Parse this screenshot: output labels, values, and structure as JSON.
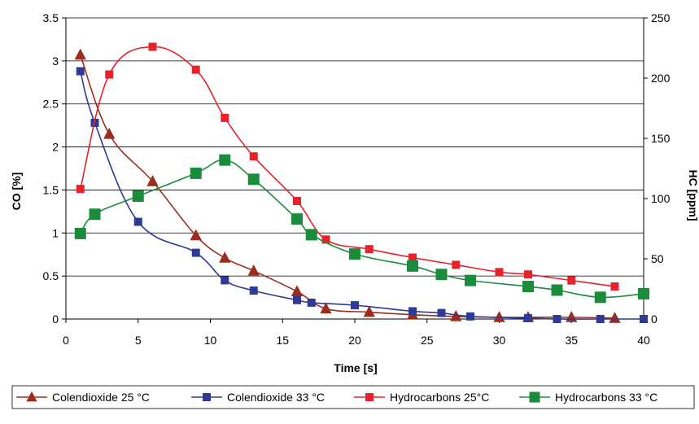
{
  "chart_data": {
    "type": "line",
    "xlabel": "Time [s]",
    "ylabel": "CO [%]",
    "y2label": "HC [ppm]",
    "xlim": [
      0,
      40
    ],
    "ylim": [
      0,
      3.5
    ],
    "y2lim": [
      0,
      250
    ],
    "x_ticks": [
      "0",
      "5",
      "10",
      "15",
      "20",
      "25",
      "30",
      "35",
      "40"
    ],
    "y_ticks": [
      "0",
      "0.5",
      "1",
      "1.5",
      "2",
      "2.5",
      "3",
      "3.5"
    ],
    "y2_ticks": [
      "0",
      "50",
      "100",
      "150",
      "200",
      "250"
    ],
    "grid": "horizontal",
    "legend_position": "bottom",
    "series": [
      {
        "name": "Colendioxide 25 °C",
        "axis": "left",
        "color": "#9b2d1e",
        "marker": "triangle",
        "x": [
          1,
          3,
          6,
          9,
          11,
          13,
          16,
          18,
          21,
          24,
          27,
          30,
          32,
          35,
          38
        ],
        "y": [
          3.07,
          2.15,
          1.6,
          0.97,
          0.71,
          0.56,
          0.32,
          0.12,
          0.08,
          0.05,
          0.03,
          0.02,
          0.02,
          0.02,
          0.01
        ]
      },
      {
        "name": "Colendioxide 33 °C",
        "axis": "left",
        "color": "#2e3a94",
        "marker": "square",
        "x": [
          1,
          2,
          5,
          9,
          11,
          13,
          16,
          17,
          20,
          24,
          26,
          28,
          32,
          34,
          37,
          40
        ],
        "y": [
          2.88,
          2.28,
          1.13,
          0.77,
          0.45,
          0.33,
          0.22,
          0.19,
          0.16,
          0.09,
          0.07,
          0.03,
          0.01,
          0.0,
          0.0,
          0.0
        ]
      },
      {
        "name": "Hydrocarbons 25°C",
        "axis": "right",
        "color": "#e8222b",
        "marker": "square",
        "x": [
          1,
          3,
          6,
          9,
          11,
          13,
          16,
          18,
          21,
          24,
          27,
          30,
          32,
          35,
          38
        ],
        "y": [
          108,
          203,
          226,
          207,
          167,
          135,
          98,
          66,
          58,
          51,
          45,
          39,
          37,
          32,
          27
        ]
      },
      {
        "name": "Hydrocarbons 33 °C",
        "axis": "right",
        "color": "#1a8c3c",
        "marker": "square",
        "x": [
          1,
          2,
          5,
          9,
          11,
          13,
          16,
          17,
          20,
          24,
          26,
          28,
          32,
          34,
          37,
          40
        ],
        "y": [
          71,
          87,
          102,
          121,
          132,
          116,
          83,
          70,
          54,
          44,
          37,
          32,
          27,
          24,
          18,
          21
        ]
      }
    ]
  }
}
